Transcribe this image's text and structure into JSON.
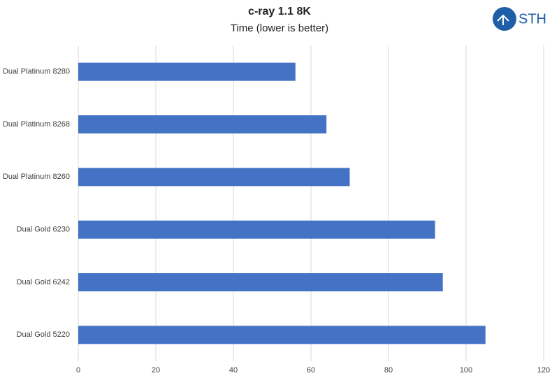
{
  "chart_data": {
    "type": "bar",
    "orientation": "horizontal",
    "title": "c-ray 1.1 8K",
    "subtitle": "Time (lower is better)",
    "logo": "STH",
    "categories": [
      "Dual Platinum 8280",
      "Dual Platinum 8268",
      "Dual Platinum 8260",
      "Dual Gold 6230",
      "Dual Gold 6242",
      "Dual Gold 5220"
    ],
    "values": [
      56,
      64,
      70,
      92,
      94,
      105
    ],
    "color": "#4472c4",
    "xlim": [
      0,
      120
    ],
    "xticks": [
      0,
      20,
      40,
      60,
      80,
      100,
      120
    ],
    "grid": true
  }
}
